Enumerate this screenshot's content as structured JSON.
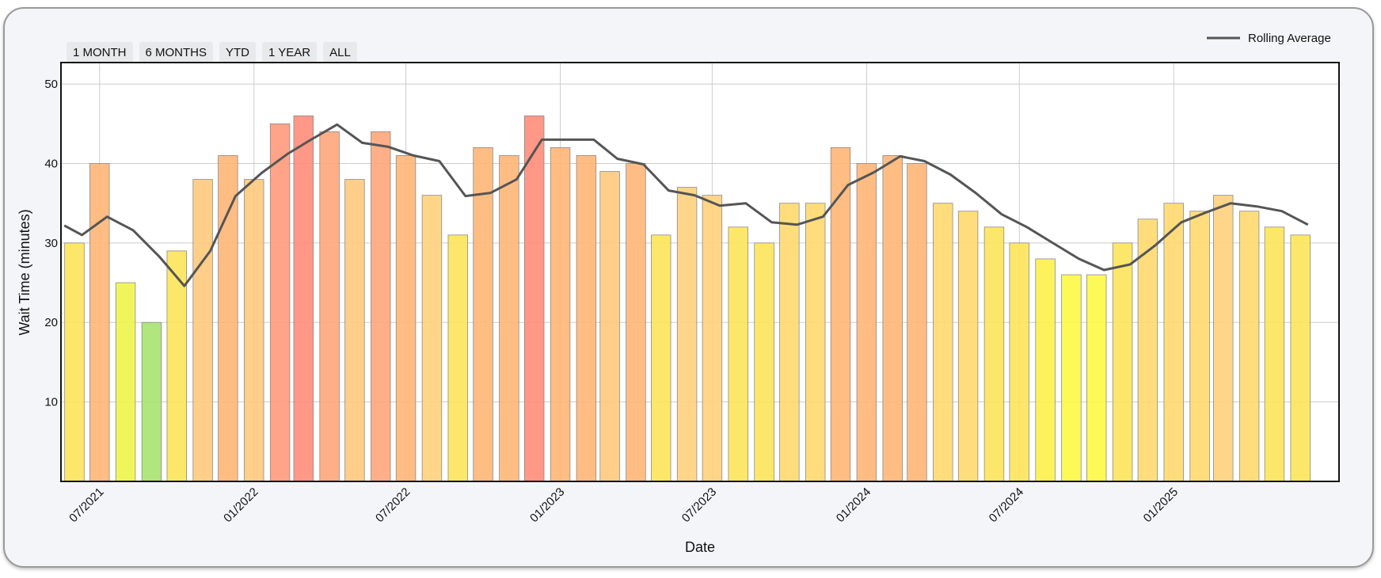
{
  "range_buttons": [
    {
      "label": "1 MONTH"
    },
    {
      "label": "6 MONTHS"
    },
    {
      "label": "YTD"
    },
    {
      "label": "1 YEAR"
    },
    {
      "label": "ALL"
    }
  ],
  "chart_data": {
    "type": "bar",
    "xlabel": "Date",
    "ylabel": "Wait Time (minutes)",
    "ylim": [
      0,
      52.7
    ],
    "yticks": [
      10,
      20,
      30,
      40,
      50
    ],
    "grid": true,
    "legend_position": "top-right",
    "x": [
      "2021-06",
      "2021-07",
      "2021-08",
      "2021-09",
      "2021-10",
      "2021-11",
      "2021-12",
      "2022-01",
      "2022-02",
      "2022-03",
      "2022-04",
      "2022-05",
      "2022-06",
      "2022-07",
      "2022-08",
      "2022-09",
      "2022-10",
      "2022-11",
      "2022-12",
      "2023-01",
      "2023-02",
      "2023-03",
      "2023-04",
      "2023-05",
      "2023-06",
      "2023-07",
      "2023-08",
      "2023-09",
      "2023-10",
      "2023-11",
      "2023-12",
      "2024-01",
      "2024-02",
      "2024-03",
      "2024-04",
      "2024-05",
      "2024-06",
      "2024-07",
      "2024-08",
      "2024-09",
      "2024-10",
      "2024-11",
      "2024-12",
      "2025-01",
      "2025-02",
      "2025-03",
      "2025-04",
      "2025-05",
      "2025-06"
    ],
    "xtick_labels": [
      {
        "date": "2021-07",
        "label": "07/2021"
      },
      {
        "date": "2022-01",
        "label": "01/2022"
      },
      {
        "date": "2022-07",
        "label": "07/2022"
      },
      {
        "date": "2023-01",
        "label": "01/2023"
      },
      {
        "date": "2023-07",
        "label": "07/2023"
      },
      {
        "date": "2024-01",
        "label": "01/2024"
      },
      {
        "date": "2024-07",
        "label": "07/2024"
      },
      {
        "date": "2025-01",
        "label": "01/2025"
      }
    ],
    "series": [
      {
        "type": "bar",
        "values": [
          30,
          40,
          25,
          20,
          29,
          38,
          41,
          38,
          45,
          46,
          44,
          38,
          44,
          41,
          36,
          31,
          42,
          41,
          46,
          42,
          41,
          39,
          40,
          31,
          37,
          36,
          32,
          30,
          35,
          35,
          42,
          40,
          41,
          40,
          35,
          34,
          32,
          30,
          28,
          26,
          26,
          30,
          33,
          35,
          34,
          36,
          34,
          32,
          31
        ],
        "colors": [
          "#fde45a",
          "#ffb677",
          "#eff44a",
          "#a9e26f",
          "#fde45a",
          "#ffc97c",
          "#ffb677",
          "#ffc97c",
          "#ff9a7c",
          "#ff8d79",
          "#ffa67a",
          "#ffc97c",
          "#ffa67a",
          "#ffb677",
          "#ffd27c",
          "#fde45a",
          "#ffb677",
          "#ffb677",
          "#ff8d79",
          "#ffb677",
          "#ffb677",
          "#ffc97c",
          "#ffb677",
          "#fde45a",
          "#ffd27c",
          "#ffd27c",
          "#fde45a",
          "#fde45a",
          "#ffd96e",
          "#ffd96e",
          "#ffb677",
          "#ffb677",
          "#ffb677",
          "#ffb677",
          "#ffd96e",
          "#ffd96e",
          "#fde45a",
          "#fde45a",
          "#fdef4a",
          "#fdf845",
          "#fdf845",
          "#fde45a",
          "#ffd96e",
          "#ffd96e",
          "#ffd96e",
          "#ffd27c",
          "#ffd96e",
          "#fde45a",
          "#fde45a"
        ]
      },
      {
        "type": "line",
        "name": "Rolling Average",
        "color": "#555555",
        "points": [
          [
            "2021-05-20",
            32.2
          ],
          [
            "2021-06-10",
            31.0
          ],
          [
            "2021-07-10",
            33.3
          ],
          [
            "2021-08-10",
            31.6
          ],
          [
            "2021-09-10",
            28.3
          ],
          [
            "2021-10-10",
            24.6
          ],
          [
            "2021-11-10",
            29.0
          ],
          [
            "2021-12-10",
            35.9
          ],
          [
            "2022-01-10",
            38.8
          ],
          [
            "2022-02-10",
            41.2
          ],
          [
            "2022-03-10",
            43.0
          ],
          [
            "2022-04-10",
            44.9
          ],
          [
            "2022-05-10",
            42.6
          ],
          [
            "2022-06-10",
            42.1
          ],
          [
            "2022-07-10",
            41.0
          ],
          [
            "2022-08-10",
            40.3
          ],
          [
            "2022-09-10",
            35.9
          ],
          [
            "2022-10-10",
            36.3
          ],
          [
            "2022-11-10",
            38.0
          ],
          [
            "2022-12-10",
            43.0
          ],
          [
            "2023-01-10",
            43.0
          ],
          [
            "2023-02-10",
            43.0
          ],
          [
            "2023-03-10",
            40.6
          ],
          [
            "2023-04-10",
            39.9
          ],
          [
            "2023-05-10",
            36.6
          ],
          [
            "2023-06-10",
            36.0
          ],
          [
            "2023-07-10",
            34.7
          ],
          [
            "2023-08-10",
            35.0
          ],
          [
            "2023-09-10",
            32.6
          ],
          [
            "2023-10-10",
            32.3
          ],
          [
            "2023-11-10",
            33.3
          ],
          [
            "2023-12-10",
            37.3
          ],
          [
            "2024-01-10",
            38.9
          ],
          [
            "2024-02-10",
            40.9
          ],
          [
            "2024-03-10",
            40.3
          ],
          [
            "2024-04-10",
            38.6
          ],
          [
            "2024-05-10",
            36.3
          ],
          [
            "2024-06-10",
            33.6
          ],
          [
            "2024-07-10",
            32.0
          ],
          [
            "2024-08-10",
            30.0
          ],
          [
            "2024-09-10",
            28.0
          ],
          [
            "2024-10-10",
            26.6
          ],
          [
            "2024-11-10",
            27.3
          ],
          [
            "2024-12-10",
            29.7
          ],
          [
            "2025-01-10",
            32.6
          ],
          [
            "2025-02-10",
            33.9
          ],
          [
            "2025-03-10",
            35.0
          ],
          [
            "2025-04-10",
            34.6
          ],
          [
            "2025-05-10",
            34.0
          ],
          [
            "2025-06-10",
            32.3
          ]
        ]
      }
    ]
  }
}
